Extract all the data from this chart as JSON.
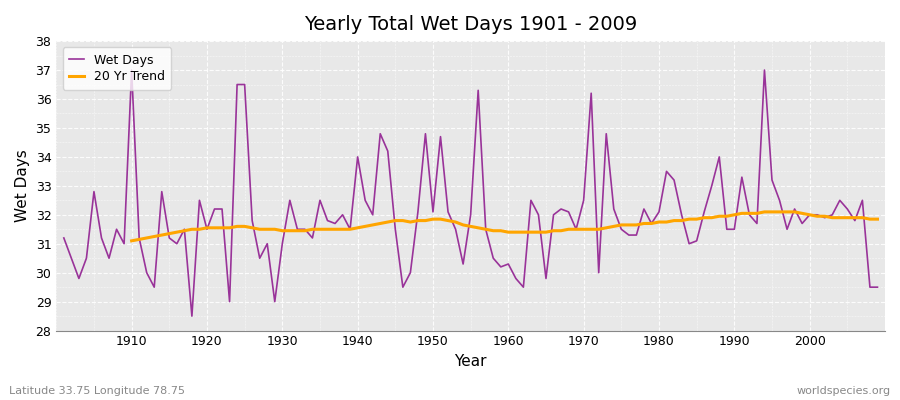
{
  "title": "Yearly Total Wet Days 1901 - 2009",
  "xlabel": "Year",
  "ylabel": "Wet Days",
  "subtitle": "Latitude 33.75 Longitude 78.75",
  "watermark": "worldspecies.org",
  "ylim": [
    28,
    38
  ],
  "yticks": [
    28,
    29,
    30,
    31,
    32,
    33,
    34,
    35,
    36,
    37,
    38
  ],
  "wet_days_color": "#993399",
  "trend_color": "#FFA500",
  "plot_bg": "#E8E8E8",
  "fig_bg": "#FFFFFF",
  "years": [
    1901,
    1902,
    1903,
    1904,
    1905,
    1906,
    1907,
    1908,
    1909,
    1910,
    1911,
    1912,
    1913,
    1914,
    1915,
    1916,
    1917,
    1918,
    1919,
    1920,
    1921,
    1922,
    1923,
    1924,
    1925,
    1926,
    1927,
    1928,
    1929,
    1930,
    1931,
    1932,
    1933,
    1934,
    1935,
    1936,
    1937,
    1938,
    1939,
    1940,
    1941,
    1942,
    1943,
    1944,
    1945,
    1946,
    1947,
    1948,
    1949,
    1950,
    1951,
    1952,
    1953,
    1954,
    1955,
    1956,
    1957,
    1958,
    1959,
    1960,
    1961,
    1962,
    1963,
    1964,
    1965,
    1966,
    1967,
    1968,
    1969,
    1970,
    1971,
    1972,
    1973,
    1974,
    1975,
    1976,
    1977,
    1978,
    1979,
    1980,
    1981,
    1982,
    1983,
    1984,
    1985,
    1986,
    1987,
    1988,
    1989,
    1990,
    1991,
    1992,
    1993,
    1994,
    1995,
    1996,
    1997,
    1998,
    1999,
    2000,
    2001,
    2002,
    2003,
    2004,
    2005,
    2006,
    2007,
    2008,
    2009
  ],
  "wet_days": [
    31.2,
    30.5,
    29.8,
    30.5,
    32.8,
    31.2,
    30.5,
    31.5,
    31.0,
    37.0,
    31.2,
    30.0,
    29.5,
    32.8,
    31.2,
    31.0,
    31.5,
    28.5,
    32.5,
    31.5,
    32.2,
    32.2,
    29.0,
    36.5,
    36.5,
    31.8,
    30.5,
    31.0,
    29.0,
    31.0,
    32.5,
    31.5,
    31.5,
    31.2,
    32.5,
    31.8,
    31.7,
    32.0,
    31.5,
    34.0,
    32.5,
    32.0,
    34.8,
    34.2,
    31.5,
    29.5,
    30.0,
    32.1,
    34.8,
    32.1,
    34.7,
    32.1,
    31.5,
    30.3,
    32.0,
    36.3,
    31.5,
    30.5,
    30.2,
    30.3,
    29.8,
    29.5,
    32.5,
    32.0,
    29.8,
    32.0,
    32.2,
    32.1,
    31.5,
    32.5,
    36.2,
    30.0,
    34.8,
    32.2,
    31.5,
    31.3,
    31.3,
    32.2,
    31.7,
    32.1,
    33.5,
    33.2,
    32.0,
    31.0,
    31.1,
    32.1,
    33.0,
    34.0,
    31.5,
    31.5,
    33.3,
    32.0,
    31.7,
    37.0,
    33.2,
    32.5,
    31.5,
    32.2,
    31.7,
    32.0,
    32.0,
    31.9,
    32.0,
    32.5,
    32.2,
    31.8,
    32.5,
    29.5,
    29.5
  ],
  "trend": [
    null,
    null,
    null,
    null,
    null,
    null,
    null,
    null,
    null,
    31.1,
    31.15,
    31.2,
    31.25,
    31.3,
    31.35,
    31.4,
    31.45,
    31.5,
    31.5,
    31.55,
    31.55,
    31.55,
    31.55,
    31.6,
    31.6,
    31.55,
    31.5,
    31.5,
    31.5,
    31.45,
    31.45,
    31.45,
    31.45,
    31.5,
    31.5,
    31.5,
    31.5,
    31.5,
    31.5,
    31.55,
    31.6,
    31.65,
    31.7,
    31.75,
    31.8,
    31.8,
    31.75,
    31.8,
    31.8,
    31.85,
    31.85,
    31.8,
    31.75,
    31.65,
    31.6,
    31.55,
    31.5,
    31.45,
    31.45,
    31.4,
    31.4,
    31.4,
    31.4,
    31.4,
    31.4,
    31.45,
    31.45,
    31.5,
    31.5,
    31.5,
    31.5,
    31.5,
    31.55,
    31.6,
    31.65,
    31.65,
    31.65,
    31.7,
    31.7,
    31.75,
    31.75,
    31.8,
    31.8,
    31.85,
    31.85,
    31.9,
    31.9,
    31.95,
    31.95,
    32.0,
    32.05,
    32.05,
    32.05,
    32.1,
    32.1,
    32.1,
    32.1,
    32.1,
    32.05,
    32.0,
    31.95,
    31.95,
    31.9,
    31.9,
    31.9,
    31.9,
    31.9,
    31.85,
    31.85
  ]
}
